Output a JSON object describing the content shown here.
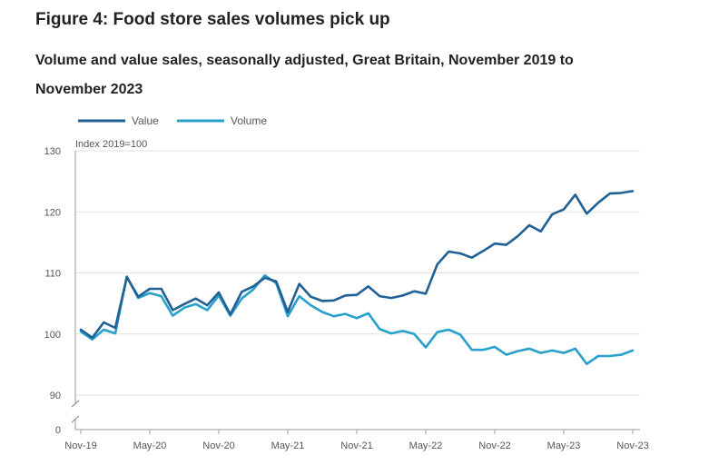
{
  "title": "Figure 4: Food store sales volumes pick up",
  "subtitle": "Volume and value sales, seasonally adjusted, Great Britain, November 2019 to November 2023",
  "chart_data": {
    "type": "line",
    "ylabel": "Index 2019=100",
    "ylim": [
      90,
      130
    ],
    "y_ticks": [
      "130",
      "120",
      "110",
      "100",
      "90",
      "0"
    ],
    "axis_break": true,
    "grid": true,
    "legend_position": "top-left",
    "x_tick_labels": [
      "Nov-19",
      "May-20",
      "Nov-20",
      "May-21",
      "Nov-21",
      "May-22",
      "Nov-22",
      "May-23",
      "Nov-23"
    ],
    "x_start": "Nov-19",
    "x_end": "Nov-23",
    "colors": {
      "Value": "#206095",
      "Volume": "#27a0cc"
    },
    "series": [
      {
        "name": "Value",
        "values": [
          100.7,
          99.4,
          101.9,
          101.0,
          109.3,
          106.1,
          107.4,
          107.4,
          103.9,
          104.9,
          105.8,
          104.7,
          106.8,
          103.2,
          106.9,
          107.8,
          109.2,
          108.6,
          103.6,
          108.2,
          106.1,
          105.4,
          105.5,
          106.3,
          106.4,
          107.8,
          106.2,
          105.9,
          106.3,
          107.0,
          106.6,
          111.4,
          113.5,
          113.2,
          112.5,
          113.6,
          114.8,
          114.6,
          116.0,
          117.8,
          116.8,
          119.6,
          120.4,
          122.8,
          119.7,
          121.5,
          123.0,
          123.1,
          123.4
        ]
      },
      {
        "name": "Volume",
        "values": [
          100.4,
          99.1,
          100.7,
          100.1,
          109.4,
          105.9,
          106.7,
          106.2,
          103.0,
          104.3,
          104.9,
          103.9,
          106.3,
          103.0,
          105.8,
          107.3,
          109.6,
          108.3,
          102.9,
          106.2,
          104.7,
          103.6,
          102.9,
          103.3,
          102.6,
          103.4,
          100.8,
          100.1,
          100.5,
          100.0,
          97.8,
          100.3,
          100.7,
          99.9,
          97.4,
          97.4,
          97.9,
          96.6,
          97.2,
          97.6,
          96.9,
          97.3,
          96.9,
          97.6,
          95.1,
          96.4,
          96.4,
          96.6,
          97.3
        ]
      }
    ]
  }
}
